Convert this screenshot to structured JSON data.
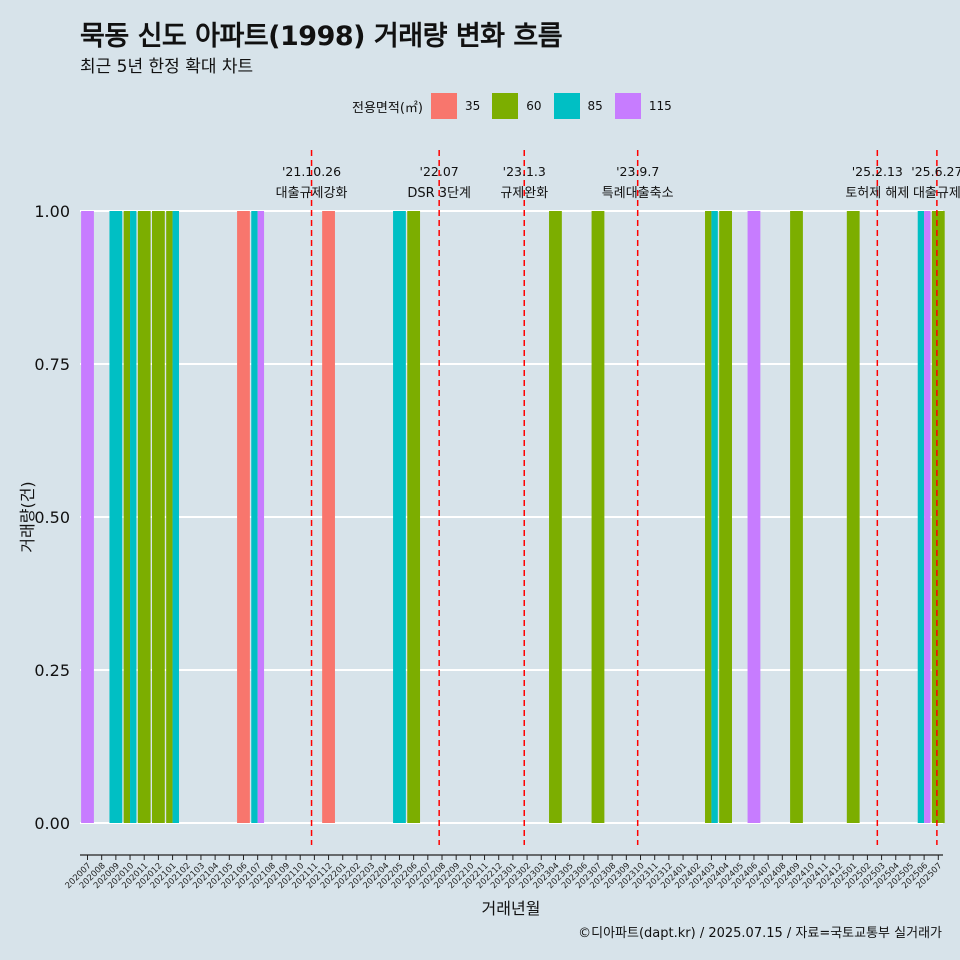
{
  "header": {
    "title": "묵동 신도 아파트(1998) 거래량 변화 흐름",
    "subtitle": "최근 5년 한정 확대 차트"
  },
  "legend": {
    "title": "전용면적(㎡)",
    "items": [
      {
        "label": "35",
        "color": "#f8766d"
      },
      {
        "label": "60",
        "color": "#7cae00"
      },
      {
        "label": "85",
        "color": "#00bfc4"
      },
      {
        "label": "115",
        "color": "#c77cff"
      }
    ]
  },
  "caption": "©디아파트(dapt.kr) / 2025.07.15 / 자료=국토교통부 실거래가",
  "chart_data": {
    "type": "bar",
    "stacked": false,
    "xlabel": "거래년월",
    "ylabel": "거래량(건)",
    "ylim": [
      0,
      1
    ],
    "yticks": [
      "0.00",
      "0.25",
      "0.50",
      "0.75",
      "1.00"
    ],
    "grid": true,
    "legend_position": "top",
    "categories": [
      "202007",
      "202008",
      "202009",
      "202010",
      "202011",
      "202012",
      "202101",
      "202102",
      "202103",
      "202104",
      "202105",
      "202106",
      "202107",
      "202108",
      "202109",
      "202110",
      "202111",
      "202112",
      "202201",
      "202202",
      "202203",
      "202204",
      "202205",
      "202206",
      "202207",
      "202208",
      "202209",
      "202210",
      "202211",
      "202212",
      "202301",
      "202302",
      "202303",
      "202304",
      "202305",
      "202306",
      "202307",
      "202308",
      "202309",
      "202310",
      "202311",
      "202312",
      "202401",
      "202402",
      "202403",
      "202404",
      "202405",
      "202406",
      "202407",
      "202408",
      "202409",
      "202410",
      "202411",
      "202412",
      "202501",
      "202502",
      "202503",
      "202504",
      "202505",
      "202506",
      "202507"
    ],
    "bars": [
      {
        "month": "202007",
        "area": "115",
        "value": 1
      },
      {
        "month": "202009",
        "area": "85",
        "value": 1
      },
      {
        "month": "202010",
        "area": "60",
        "value": 1
      },
      {
        "month": "202010",
        "area": "85",
        "value": 1
      },
      {
        "month": "202011",
        "area": "60",
        "value": 1
      },
      {
        "month": "202012",
        "area": "60",
        "value": 1
      },
      {
        "month": "202101",
        "area": "60",
        "value": 1
      },
      {
        "month": "202101",
        "area": "85",
        "value": 1
      },
      {
        "month": "202106",
        "area": "35",
        "value": 1
      },
      {
        "month": "202107",
        "area": "85",
        "value": 1
      },
      {
        "month": "202107",
        "area": "115",
        "value": 1
      },
      {
        "month": "202112",
        "area": "35",
        "value": 1
      },
      {
        "month": "202205",
        "area": "85",
        "value": 1
      },
      {
        "month": "202206",
        "area": "60",
        "value": 1
      },
      {
        "month": "202304",
        "area": "60",
        "value": 1
      },
      {
        "month": "202307",
        "area": "60",
        "value": 1
      },
      {
        "month": "202403",
        "area": "60",
        "value": 1
      },
      {
        "month": "202403",
        "area": "85",
        "value": 1
      },
      {
        "month": "202404",
        "area": "60",
        "value": 1
      },
      {
        "month": "202406",
        "area": "115",
        "value": 1
      },
      {
        "month": "202409",
        "area": "60",
        "value": 1
      },
      {
        "month": "202501",
        "area": "60",
        "value": 1
      },
      {
        "month": "202506",
        "area": "85",
        "value": 1
      },
      {
        "month": "202506",
        "area": "115",
        "value": 1
      },
      {
        "month": "202507",
        "area": "60",
        "value": 1
      }
    ],
    "events": [
      {
        "date": "'21.10.26",
        "label": "대출규제강화",
        "pos": 15.8
      },
      {
        "date": "'22.07",
        "label": "DSR 3단계",
        "pos": 24.8
      },
      {
        "date": "'23.1.3",
        "label": "규제완화",
        "pos": 30.8
      },
      {
        "date": "'23.9.7",
        "label": "특례대출축소",
        "pos": 38.8
      },
      {
        "date": "'25.2.13",
        "label": "토허제 해제",
        "pos": 55.7
      },
      {
        "date": "'25.6.27",
        "label": "대출규제",
        "pos": 59.9
      }
    ]
  }
}
